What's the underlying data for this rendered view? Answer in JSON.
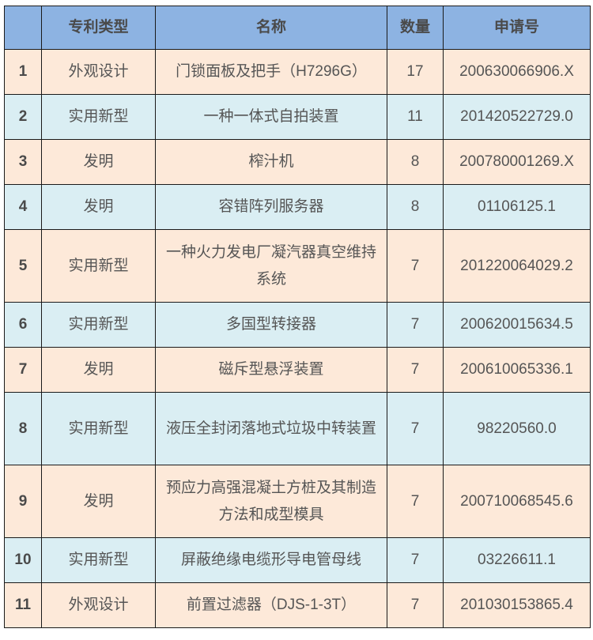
{
  "colors": {
    "header": "#8db3e2",
    "row_odd": "#fde9d9",
    "row_even": "#daeef3"
  },
  "headers": [
    "",
    "专利类型",
    "名称",
    "数量",
    "申请号"
  ],
  "rows": [
    {
      "no": "1",
      "type": "外观设计",
      "name": "门锁面板及把手（H7296G）",
      "count": "17",
      "app_no": "200630066906.X"
    },
    {
      "no": "2",
      "type": "实用新型",
      "name": "一种一体式自拍装置",
      "count": "11",
      "app_no": "201420522729.0"
    },
    {
      "no": "3",
      "type": "发明",
      "name": "榨汁机",
      "count": "8",
      "app_no": "200780001269.X"
    },
    {
      "no": "4",
      "type": "发明",
      "name": "容错阵列服务器",
      "count": "8",
      "app_no": "01106125.1"
    },
    {
      "no": "5",
      "type": "实用新型",
      "name": "一种火力发电厂凝汽器真空维持系统",
      "count": "7",
      "app_no": "201220064029.2"
    },
    {
      "no": "6",
      "type": "实用新型",
      "name": "多国型转接器",
      "count": "7",
      "app_no": "200620015634.5"
    },
    {
      "no": "7",
      "type": "发明",
      "name": "磁斥型悬浮装置",
      "count": "7",
      "app_no": "200610065336.1"
    },
    {
      "no": "8",
      "type": "实用新型",
      "name": "液压全封闭落地式垃圾中转装置",
      "count": "7",
      "app_no": "98220560.0"
    },
    {
      "no": "9",
      "type": "发明",
      "name": "预应力高强混凝土方桩及其制造方法和成型模具",
      "count": "7",
      "app_no": "200710068545.6"
    },
    {
      "no": "10",
      "type": "实用新型",
      "name": "屏蔽绝缘电缆形导电管母线",
      "count": "7",
      "app_no": "03226611.1"
    },
    {
      "no": "11",
      "type": "外观设计",
      "name": "前置过滤器（DJS-1-3T）",
      "count": "7",
      "app_no": "201030153865.4"
    }
  ]
}
